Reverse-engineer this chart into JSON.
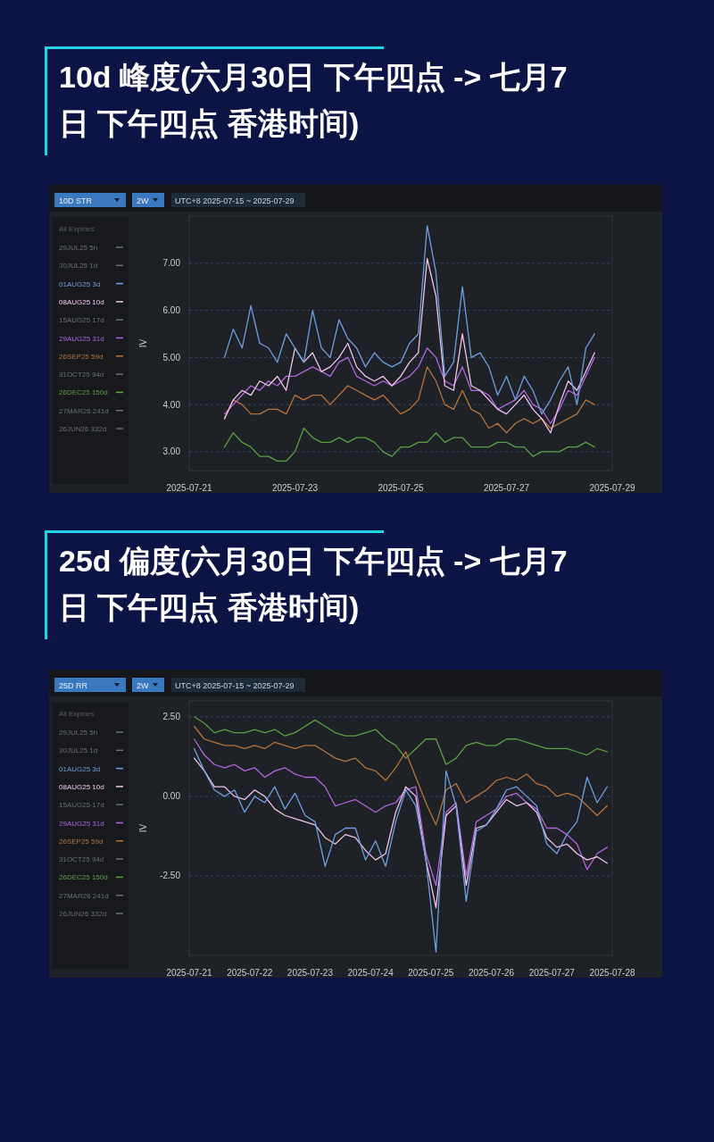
{
  "chart_data": [
    {
      "type": "line",
      "title": "10d 峰度(六月30日 下午四点 -> 七月7日 下午四点 香港时间)",
      "ylabel": "IV",
      "legend_title": "All Expiries",
      "legend": "left",
      "grid": "y",
      "annotations": [
        "10D STR",
        "2W",
        "UTC+8 2025-07-15 ~ 2025-07-29"
      ],
      "xlim": [
        "2025-07-21",
        "2025-07-29"
      ],
      "xticks": [
        "2025-07-21",
        "2025-07-23",
        "2025-07-25",
        "2025-07-27",
        "2025-07-29"
      ],
      "ylim": [
        2.6,
        8.0
      ],
      "yticks": [
        {
          "value": 3,
          "label": "3.00"
        },
        {
          "value": 4,
          "label": "4.00"
        },
        {
          "value": 5,
          "label": "5.00"
        },
        {
          "value": 6,
          "label": "6.00"
        },
        {
          "value": 7,
          "label": "7.00"
        }
      ],
      "x": [
        "2025-07-21T16:00",
        "2025-07-21T20:00",
        "2025-07-22T00:00",
        "2025-07-22T04:00",
        "2025-07-22T08:00",
        "2025-07-22T12:00",
        "2025-07-22T16:00",
        "2025-07-22T20:00",
        "2025-07-23T00:00",
        "2025-07-23T04:00",
        "2025-07-23T08:00",
        "2025-07-23T12:00",
        "2025-07-23T16:00",
        "2025-07-23T20:00",
        "2025-07-24T00:00",
        "2025-07-24T04:00",
        "2025-07-24T08:00",
        "2025-07-24T12:00",
        "2025-07-24T16:00",
        "2025-07-24T20:00",
        "2025-07-25T00:00",
        "2025-07-25T04:00",
        "2025-07-25T08:00",
        "2025-07-25T12:00",
        "2025-07-25T16:00",
        "2025-07-25T20:00",
        "2025-07-26T00:00",
        "2025-07-26T04:00",
        "2025-07-26T08:00",
        "2025-07-26T12:00",
        "2025-07-26T16:00",
        "2025-07-26T20:00",
        "2025-07-27T00:00",
        "2025-07-27T04:00",
        "2025-07-27T08:00",
        "2025-07-27T12:00",
        "2025-07-27T16:00",
        "2025-07-27T20:00",
        "2025-07-28T00:00",
        "2025-07-28T04:00",
        "2025-07-28T08:00",
        "2025-07-28T12:00",
        "2025-07-28T16:00"
      ],
      "series": [
        {
          "name": "29JUL25 5h",
          "color": "#6b6e73",
          "values": [
            null,
            null,
            null,
            null,
            null,
            null,
            null,
            null,
            null,
            null,
            null,
            null,
            null,
            null,
            null,
            null,
            null,
            null,
            null,
            null,
            null,
            null,
            null,
            null,
            null,
            null,
            null,
            null,
            null,
            null,
            null,
            null,
            null,
            null,
            null,
            null,
            null,
            null,
            null,
            null,
            null,
            null,
            null
          ]
        },
        {
          "name": "30JUL25 1d",
          "color": "#6b6e73",
          "values": [
            null,
            null,
            null,
            null,
            null,
            null,
            null,
            null,
            null,
            null,
            null,
            null,
            null,
            null,
            null,
            null,
            null,
            null,
            null,
            null,
            null,
            null,
            null,
            null,
            null,
            null,
            null,
            null,
            null,
            null,
            null,
            null,
            null,
            null,
            null,
            null,
            null,
            null,
            null,
            null,
            null,
            null,
            null
          ]
        },
        {
          "name": "01AUG25 3d",
          "color": "#6f9fe0",
          "values": [
            5.0,
            5.6,
            5.2,
            6.1,
            5.3,
            5.2,
            4.9,
            5.5,
            5.2,
            4.9,
            6.0,
            5.2,
            5.0,
            5.8,
            5.4,
            5.2,
            4.8,
            5.1,
            4.9,
            4.8,
            4.9,
            5.3,
            5.5,
            7.8,
            6.8,
            4.6,
            4.9,
            6.5,
            5.0,
            5.1,
            4.8,
            4.2,
            4.6,
            4.1,
            4.6,
            4.3,
            3.8,
            4.1,
            4.5,
            4.8,
            4.0,
            5.2,
            5.5
          ]
        },
        {
          "name": "08AUG25 10d",
          "color": "#f2c4ea",
          "values": [
            3.7,
            4.1,
            4.3,
            4.2,
            4.5,
            4.4,
            4.6,
            4.3,
            5.2,
            4.9,
            5.1,
            4.7,
            4.8,
            5.0,
            5.3,
            4.8,
            4.6,
            4.5,
            4.6,
            4.4,
            4.6,
            4.9,
            5.1,
            7.1,
            6.3,
            4.4,
            4.3,
            5.5,
            4.4,
            4.3,
            4.1,
            3.9,
            3.8,
            4.0,
            4.2,
            3.9,
            3.7,
            3.4,
            4.0,
            4.5,
            4.3,
            4.7,
            5.1
          ]
        },
        {
          "name": "15AUG25 17d",
          "color": "#6b6e73",
          "values": [
            null,
            null,
            null,
            null,
            null,
            null,
            null,
            null,
            null,
            null,
            null,
            null,
            null,
            null,
            null,
            null,
            null,
            null,
            null,
            null,
            null,
            null,
            null,
            null,
            null,
            null,
            null,
            null,
            null,
            null,
            null,
            null,
            null,
            null,
            null,
            null,
            null,
            null,
            null,
            null,
            null,
            null,
            null
          ]
        },
        {
          "name": "29AUG25 31d",
          "color": "#b366e0",
          "values": [
            3.8,
            4.0,
            4.2,
            4.4,
            4.3,
            4.5,
            4.4,
            4.6,
            4.6,
            4.7,
            4.8,
            4.7,
            4.6,
            4.9,
            5.0,
            4.6,
            4.5,
            4.4,
            4.5,
            4.4,
            4.5,
            4.6,
            4.8,
            5.2,
            5.0,
            4.5,
            4.4,
            4.8,
            4.3,
            4.3,
            4.2,
            3.9,
            4.0,
            4.1,
            4.3,
            4.0,
            3.9,
            3.6,
            3.9,
            4.3,
            4.2,
            4.6,
            5.0
          ]
        },
        {
          "name": "26SEP25 59d",
          "color": "#b8733a",
          "values": [
            3.7,
            4.1,
            4.0,
            3.8,
            3.8,
            3.9,
            3.9,
            3.8,
            4.2,
            4.1,
            4.2,
            4.2,
            4.0,
            4.2,
            4.4,
            4.3,
            4.2,
            4.1,
            4.2,
            4.0,
            3.8,
            3.9,
            4.1,
            4.8,
            4.5,
            4.0,
            3.9,
            4.3,
            3.9,
            3.8,
            3.5,
            3.6,
            3.4,
            3.6,
            3.7,
            3.6,
            3.7,
            3.5,
            3.6,
            3.7,
            3.8,
            4.1,
            4.0
          ]
        },
        {
          "name": "31OCT25 94d",
          "color": "#6b6e73",
          "values": [
            null,
            null,
            null,
            null,
            null,
            null,
            null,
            null,
            null,
            null,
            null,
            null,
            null,
            null,
            null,
            null,
            null,
            null,
            null,
            null,
            null,
            null,
            null,
            null,
            null,
            null,
            null,
            null,
            null,
            null,
            null,
            null,
            null,
            null,
            null,
            null,
            null,
            null,
            null,
            null,
            null,
            null,
            null
          ]
        },
        {
          "name": "26DEC25 150d",
          "color": "#5aa040",
          "values": [
            3.1,
            3.4,
            3.2,
            3.1,
            2.9,
            2.9,
            2.8,
            2.8,
            3.0,
            3.5,
            3.3,
            3.2,
            3.2,
            3.3,
            3.2,
            3.3,
            3.3,
            3.2,
            3.0,
            2.9,
            3.1,
            3.1,
            3.2,
            3.2,
            3.4,
            3.2,
            3.3,
            3.3,
            3.1,
            3.1,
            3.1,
            3.2,
            3.2,
            3.1,
            3.1,
            2.9,
            3.0,
            3.0,
            3.0,
            3.1,
            3.1,
            3.2,
            3.1
          ]
        },
        {
          "name": "27MAR26 241d",
          "color": "#6b6e73",
          "values": [
            null,
            null,
            null,
            null,
            null,
            null,
            null,
            null,
            null,
            null,
            null,
            null,
            null,
            null,
            null,
            null,
            null,
            null,
            null,
            null,
            null,
            null,
            null,
            null,
            null,
            null,
            null,
            null,
            null,
            null,
            null,
            null,
            null,
            null,
            null,
            null,
            null,
            null,
            null,
            null,
            null,
            null,
            null
          ]
        },
        {
          "name": "26JUN26 332d",
          "color": "#6b6e73",
          "values": [
            null,
            null,
            null,
            null,
            null,
            null,
            null,
            null,
            null,
            null,
            null,
            null,
            null,
            null,
            null,
            null,
            null,
            null,
            null,
            null,
            null,
            null,
            null,
            null,
            null,
            null,
            null,
            null,
            null,
            null,
            null,
            null,
            null,
            null,
            null,
            null,
            null,
            null,
            null,
            null,
            null,
            null,
            null
          ]
        }
      ]
    },
    {
      "type": "line",
      "title": "25d 偏度(六月30日 下午四点 -> 七月7日 下午四点 香港时间)",
      "ylabel": "IV",
      "legend_title": "All Expiries",
      "legend": "left",
      "grid": "y",
      "annotations": [
        "25D RR",
        "2W",
        "UTC+8 2025-07-15 ~ 2025-07-29"
      ],
      "xlim": [
        "2025-07-21",
        "2025-07-28"
      ],
      "xticks": [
        "2025-07-21",
        "2025-07-22",
        "2025-07-23",
        "2025-07-24",
        "2025-07-25",
        "2025-07-26",
        "2025-07-27",
        "2025-07-28"
      ],
      "ylim": [
        -5,
        3
      ],
      "yticks": [
        {
          "value": -2.5,
          "label": "-2.50"
        },
        {
          "value": 0,
          "label": "0.00"
        },
        {
          "value": 2.5,
          "label": "2.50"
        }
      ],
      "x": [
        "2025-07-21T02:00",
        "2025-07-21T06:00",
        "2025-07-21T10:00",
        "2025-07-21T14:00",
        "2025-07-21T18:00",
        "2025-07-21T22:00",
        "2025-07-22T02:00",
        "2025-07-22T06:00",
        "2025-07-22T10:00",
        "2025-07-22T14:00",
        "2025-07-22T18:00",
        "2025-07-22T22:00",
        "2025-07-23T02:00",
        "2025-07-23T06:00",
        "2025-07-23T10:00",
        "2025-07-23T14:00",
        "2025-07-23T18:00",
        "2025-07-23T22:00",
        "2025-07-24T02:00",
        "2025-07-24T06:00",
        "2025-07-24T10:00",
        "2025-07-24T14:00",
        "2025-07-24T18:00",
        "2025-07-24T22:00",
        "2025-07-25T02:00",
        "2025-07-25T06:00",
        "2025-07-25T10:00",
        "2025-07-25T14:00",
        "2025-07-25T18:00",
        "2025-07-25T22:00",
        "2025-07-26T02:00",
        "2025-07-26T06:00",
        "2025-07-26T10:00",
        "2025-07-26T14:00",
        "2025-07-26T18:00",
        "2025-07-26T22:00",
        "2025-07-27T02:00",
        "2025-07-27T06:00",
        "2025-07-27T10:00",
        "2025-07-27T14:00",
        "2025-07-27T18:00",
        "2025-07-27T22:00"
      ],
      "series": [
        {
          "name": "29JUL25 5h",
          "color": "#6b6e73",
          "values": [
            null,
            null,
            null,
            null,
            null,
            null,
            null,
            null,
            null,
            null,
            null,
            null,
            null,
            null,
            null,
            null,
            null,
            null,
            null,
            null,
            null,
            null,
            null,
            null,
            null,
            null,
            null,
            null,
            null,
            null,
            null,
            null,
            null,
            null,
            null,
            null,
            null,
            null,
            null,
            null,
            null,
            null
          ]
        },
        {
          "name": "30JUL25 1d",
          "color": "#6b6e73",
          "values": [
            null,
            null,
            null,
            null,
            null,
            null,
            null,
            null,
            null,
            null,
            null,
            null,
            null,
            null,
            null,
            null,
            null,
            null,
            null,
            null,
            null,
            null,
            null,
            null,
            null,
            null,
            null,
            null,
            null,
            null,
            null,
            null,
            null,
            null,
            null,
            null,
            null,
            null,
            null,
            null,
            null,
            null
          ]
        },
        {
          "name": "01AUG25 3d",
          "color": "#6f9fe0",
          "values": [
            1.5,
            0.8,
            0.2,
            0.0,
            0.2,
            -0.5,
            0.0,
            -0.2,
            0.3,
            -0.4,
            0.1,
            -0.6,
            -0.8,
            -2.2,
            -1.2,
            -1.0,
            -1.0,
            -2.0,
            -1.4,
            -2.2,
            -0.8,
            0.2,
            -0.3,
            -2.0,
            -4.9,
            0.8,
            -0.3,
            -3.3,
            -1.1,
            -0.9,
            -0.4,
            0.2,
            0.3,
            0.0,
            -0.3,
            -1.5,
            -1.8,
            -1.2,
            -0.8,
            0.6,
            -0.2,
            0.3
          ]
        },
        {
          "name": "08AUG25 10d",
          "color": "#f2c4ea",
          "values": [
            1.2,
            0.8,
            0.3,
            0.3,
            0.0,
            -0.1,
            0.2,
            0.0,
            -0.4,
            -0.6,
            -0.7,
            -0.8,
            -0.9,
            -1.3,
            -1.5,
            -1.2,
            -1.3,
            -1.7,
            -2.0,
            -1.8,
            -0.5,
            0.3,
            0.0,
            -2.0,
            -3.5,
            -0.6,
            -0.3,
            -2.8,
            -1.0,
            -0.9,
            -0.5,
            -0.1,
            -0.3,
            -0.2,
            -0.5,
            -1.3,
            -1.6,
            -1.5,
            -1.8,
            -2.0,
            -1.9,
            -2.1
          ]
        },
        {
          "name": "15AUG25 17d",
          "color": "#6b6e73",
          "values": [
            null,
            null,
            null,
            null,
            null,
            null,
            null,
            null,
            null,
            null,
            null,
            null,
            null,
            null,
            null,
            null,
            null,
            null,
            null,
            null,
            null,
            null,
            null,
            null,
            null,
            null,
            null,
            null,
            null,
            null,
            null,
            null,
            null,
            null,
            null,
            null,
            null,
            null,
            null,
            null,
            null,
            null
          ]
        },
        {
          "name": "29AUG25 31d",
          "color": "#b366e0",
          "values": [
            1.8,
            1.3,
            1.0,
            0.9,
            1.0,
            0.8,
            0.9,
            0.6,
            0.8,
            0.9,
            0.7,
            0.6,
            0.6,
            0.3,
            -0.3,
            -0.2,
            -0.1,
            -0.3,
            -0.5,
            -0.3,
            -0.2,
            0.2,
            0.3,
            -1.8,
            -2.8,
            -0.5,
            -0.2,
            -2.5,
            -0.8,
            -0.6,
            -0.4,
            0.0,
            0.1,
            -0.2,
            -0.4,
            -1.0,
            -1.0,
            -1.2,
            -1.5,
            -2.3,
            -1.8,
            -1.6
          ]
        },
        {
          "name": "26SEP25 59d",
          "color": "#b8733a",
          "values": [
            2.2,
            1.8,
            1.7,
            1.6,
            1.6,
            1.5,
            1.6,
            1.5,
            1.7,
            1.6,
            1.5,
            1.6,
            1.6,
            1.4,
            1.2,
            1.1,
            1.2,
            0.9,
            0.8,
            0.5,
            0.9,
            1.4,
            0.6,
            -0.2,
            -0.9,
            0.2,
            0.4,
            -0.2,
            0.0,
            0.2,
            0.5,
            0.6,
            0.5,
            0.7,
            0.4,
            0.3,
            0.0,
            0.1,
            0.0,
            -0.3,
            -0.6,
            -0.3
          ]
        },
        {
          "name": "31OCT25 94d",
          "color": "#6b6e73",
          "values": [
            null,
            null,
            null,
            null,
            null,
            null,
            null,
            null,
            null,
            null,
            null,
            null,
            null,
            null,
            null,
            null,
            null,
            null,
            null,
            null,
            null,
            null,
            null,
            null,
            null,
            null,
            null,
            null,
            null,
            null,
            null,
            null,
            null,
            null,
            null,
            null,
            null,
            null,
            null,
            null,
            null,
            null
          ]
        },
        {
          "name": "26DEC25 150d",
          "color": "#5aa040",
          "values": [
            2.5,
            2.3,
            2.0,
            2.1,
            2.0,
            2.0,
            2.1,
            2.0,
            2.1,
            1.9,
            2.0,
            2.2,
            2.4,
            2.2,
            2.0,
            1.9,
            1.9,
            2.0,
            2.1,
            1.8,
            1.6,
            1.2,
            1.5,
            1.8,
            1.8,
            1.0,
            1.2,
            1.6,
            1.7,
            1.6,
            1.6,
            1.8,
            1.8,
            1.7,
            1.6,
            1.5,
            1.5,
            1.5,
            1.4,
            1.3,
            1.5,
            1.4
          ]
        },
        {
          "name": "27MAR26 241d",
          "color": "#6b6e73",
          "values": [
            null,
            null,
            null,
            null,
            null,
            null,
            null,
            null,
            null,
            null,
            null,
            null,
            null,
            null,
            null,
            null,
            null,
            null,
            null,
            null,
            null,
            null,
            null,
            null,
            null,
            null,
            null,
            null,
            null,
            null,
            null,
            null,
            null,
            null,
            null,
            null,
            null,
            null,
            null,
            null,
            null,
            null
          ]
        },
        {
          "name": "26JUN26 332d",
          "color": "#6b6e73",
          "values": [
            null,
            null,
            null,
            null,
            null,
            null,
            null,
            null,
            null,
            null,
            null,
            null,
            null,
            null,
            null,
            null,
            null,
            null,
            null,
            null,
            null,
            null,
            null,
            null,
            null,
            null,
            null,
            null,
            null,
            null,
            null,
            null,
            null,
            null,
            null,
            null,
            null,
            null,
            null,
            null,
            null,
            null
          ]
        }
      ]
    }
  ]
}
